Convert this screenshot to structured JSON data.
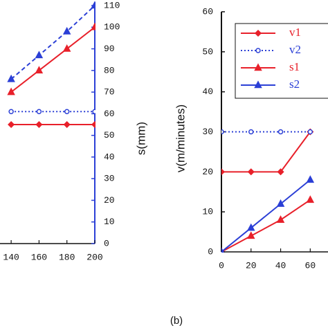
{
  "chart_data": [
    {
      "type": "line",
      "ylabel": "s(mm)",
      "yaxis": "right",
      "x": [
        140,
        160,
        180,
        200
      ],
      "xlim": [
        131,
        200
      ],
      "xticks": [
        140,
        160,
        180,
        200
      ],
      "ylim": [
        0,
        110
      ],
      "yticks": [
        0,
        10,
        20,
        30,
        40,
        50,
        60,
        70,
        80,
        90,
        100,
        110
      ],
      "series": [
        {
          "color": "#e8202a",
          "dash": "solid",
          "marker": "diamond",
          "values": [
            55,
            55,
            55,
            55
          ]
        },
        {
          "color": "#2b3fd6",
          "dash": "dotted",
          "marker": "circle",
          "values": [
            61,
            61,
            61,
            61
          ]
        },
        {
          "color": "#e8202a",
          "dash": "solid",
          "marker": "triangle",
          "values": [
            70,
            80,
            90,
            100
          ]
        },
        {
          "color": "#2b3fd6",
          "dash": "dashed",
          "marker": "triangle",
          "values": [
            76,
            87,
            98,
            110
          ]
        }
      ]
    },
    {
      "type": "line",
      "ylabel": "v(m/minutes)",
      "yaxis": "left",
      "x": [
        0,
        20,
        40,
        60
      ],
      "xlim": [
        0,
        72
      ],
      "xticks": [
        0,
        20,
        40,
        60
      ],
      "ylim": [
        0,
        60
      ],
      "yticks": [
        0,
        10,
        20,
        30,
        40,
        50,
        60
      ],
      "series": [
        {
          "name": "v1",
          "color": "#e8202a",
          "dash": "solid",
          "marker": "diamond",
          "values": [
            20,
            20,
            20,
            30
          ]
        },
        {
          "name": "v2",
          "color": "#2b3fd6",
          "dash": "dotted",
          "marker": "circle",
          "values": [
            30,
            30,
            30,
            30
          ]
        },
        {
          "name": "s1",
          "color": "#e8202a",
          "dash": "solid",
          "marker": "triangle",
          "values": [
            0,
            4,
            8,
            13
          ]
        },
        {
          "name": "s2",
          "color": "#2b3fd6",
          "dash": "solid",
          "marker": "triangle",
          "values": [
            0,
            6,
            12,
            18
          ]
        }
      ]
    }
  ],
  "caption": "(b)"
}
